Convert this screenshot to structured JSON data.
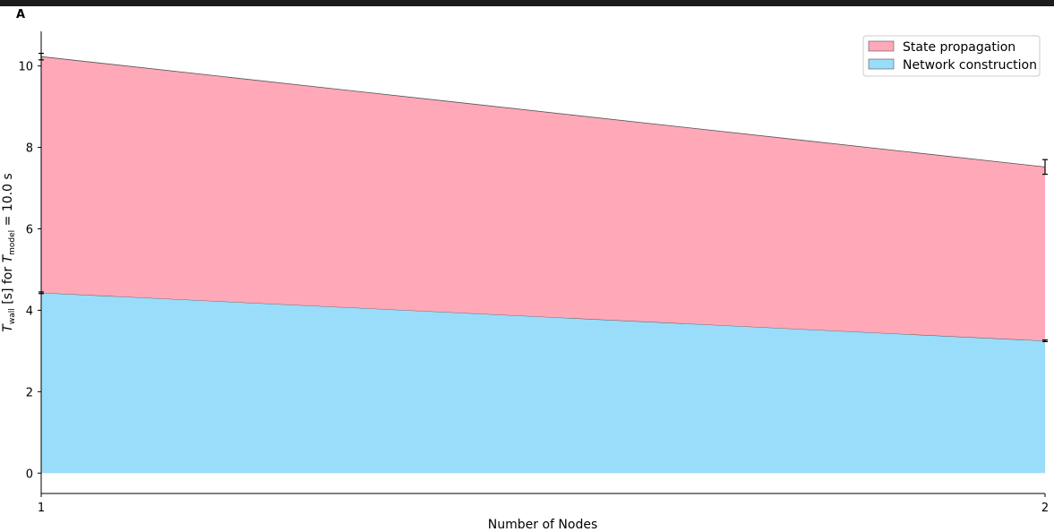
{
  "panel_label": "A",
  "chart_data": {
    "type": "area",
    "stacked": true,
    "x": [
      1,
      2
    ],
    "series": [
      {
        "name": "Network construction",
        "values": [
          4.43,
          3.25
        ],
        "color": "#99ddfb",
        "error": [
          0.02,
          0.02
        ]
      },
      {
        "name": "State propagation",
        "values": [
          5.8,
          4.27
        ],
        "color": "#ffa8b8",
        "error": [
          0.08,
          0.18
        ]
      }
    ],
    "totals": [
      10.23,
      7.52
    ],
    "xlabel": "Number of Nodes",
    "ylabel_parts": {
      "t": "T",
      "wall": "wall",
      "unit": " [s] for ",
      "t2": "T",
      "model": "model",
      "eq": " = 10.0 s"
    },
    "x_ticks": [
      "1",
      "2"
    ],
    "y_ticks": [
      "0",
      "2",
      "4",
      "6",
      "8",
      "10"
    ],
    "xlim": [
      1,
      2
    ],
    "ylim": [
      -0.5,
      10.85
    ],
    "grid": false,
    "legend_position": "top-right"
  }
}
